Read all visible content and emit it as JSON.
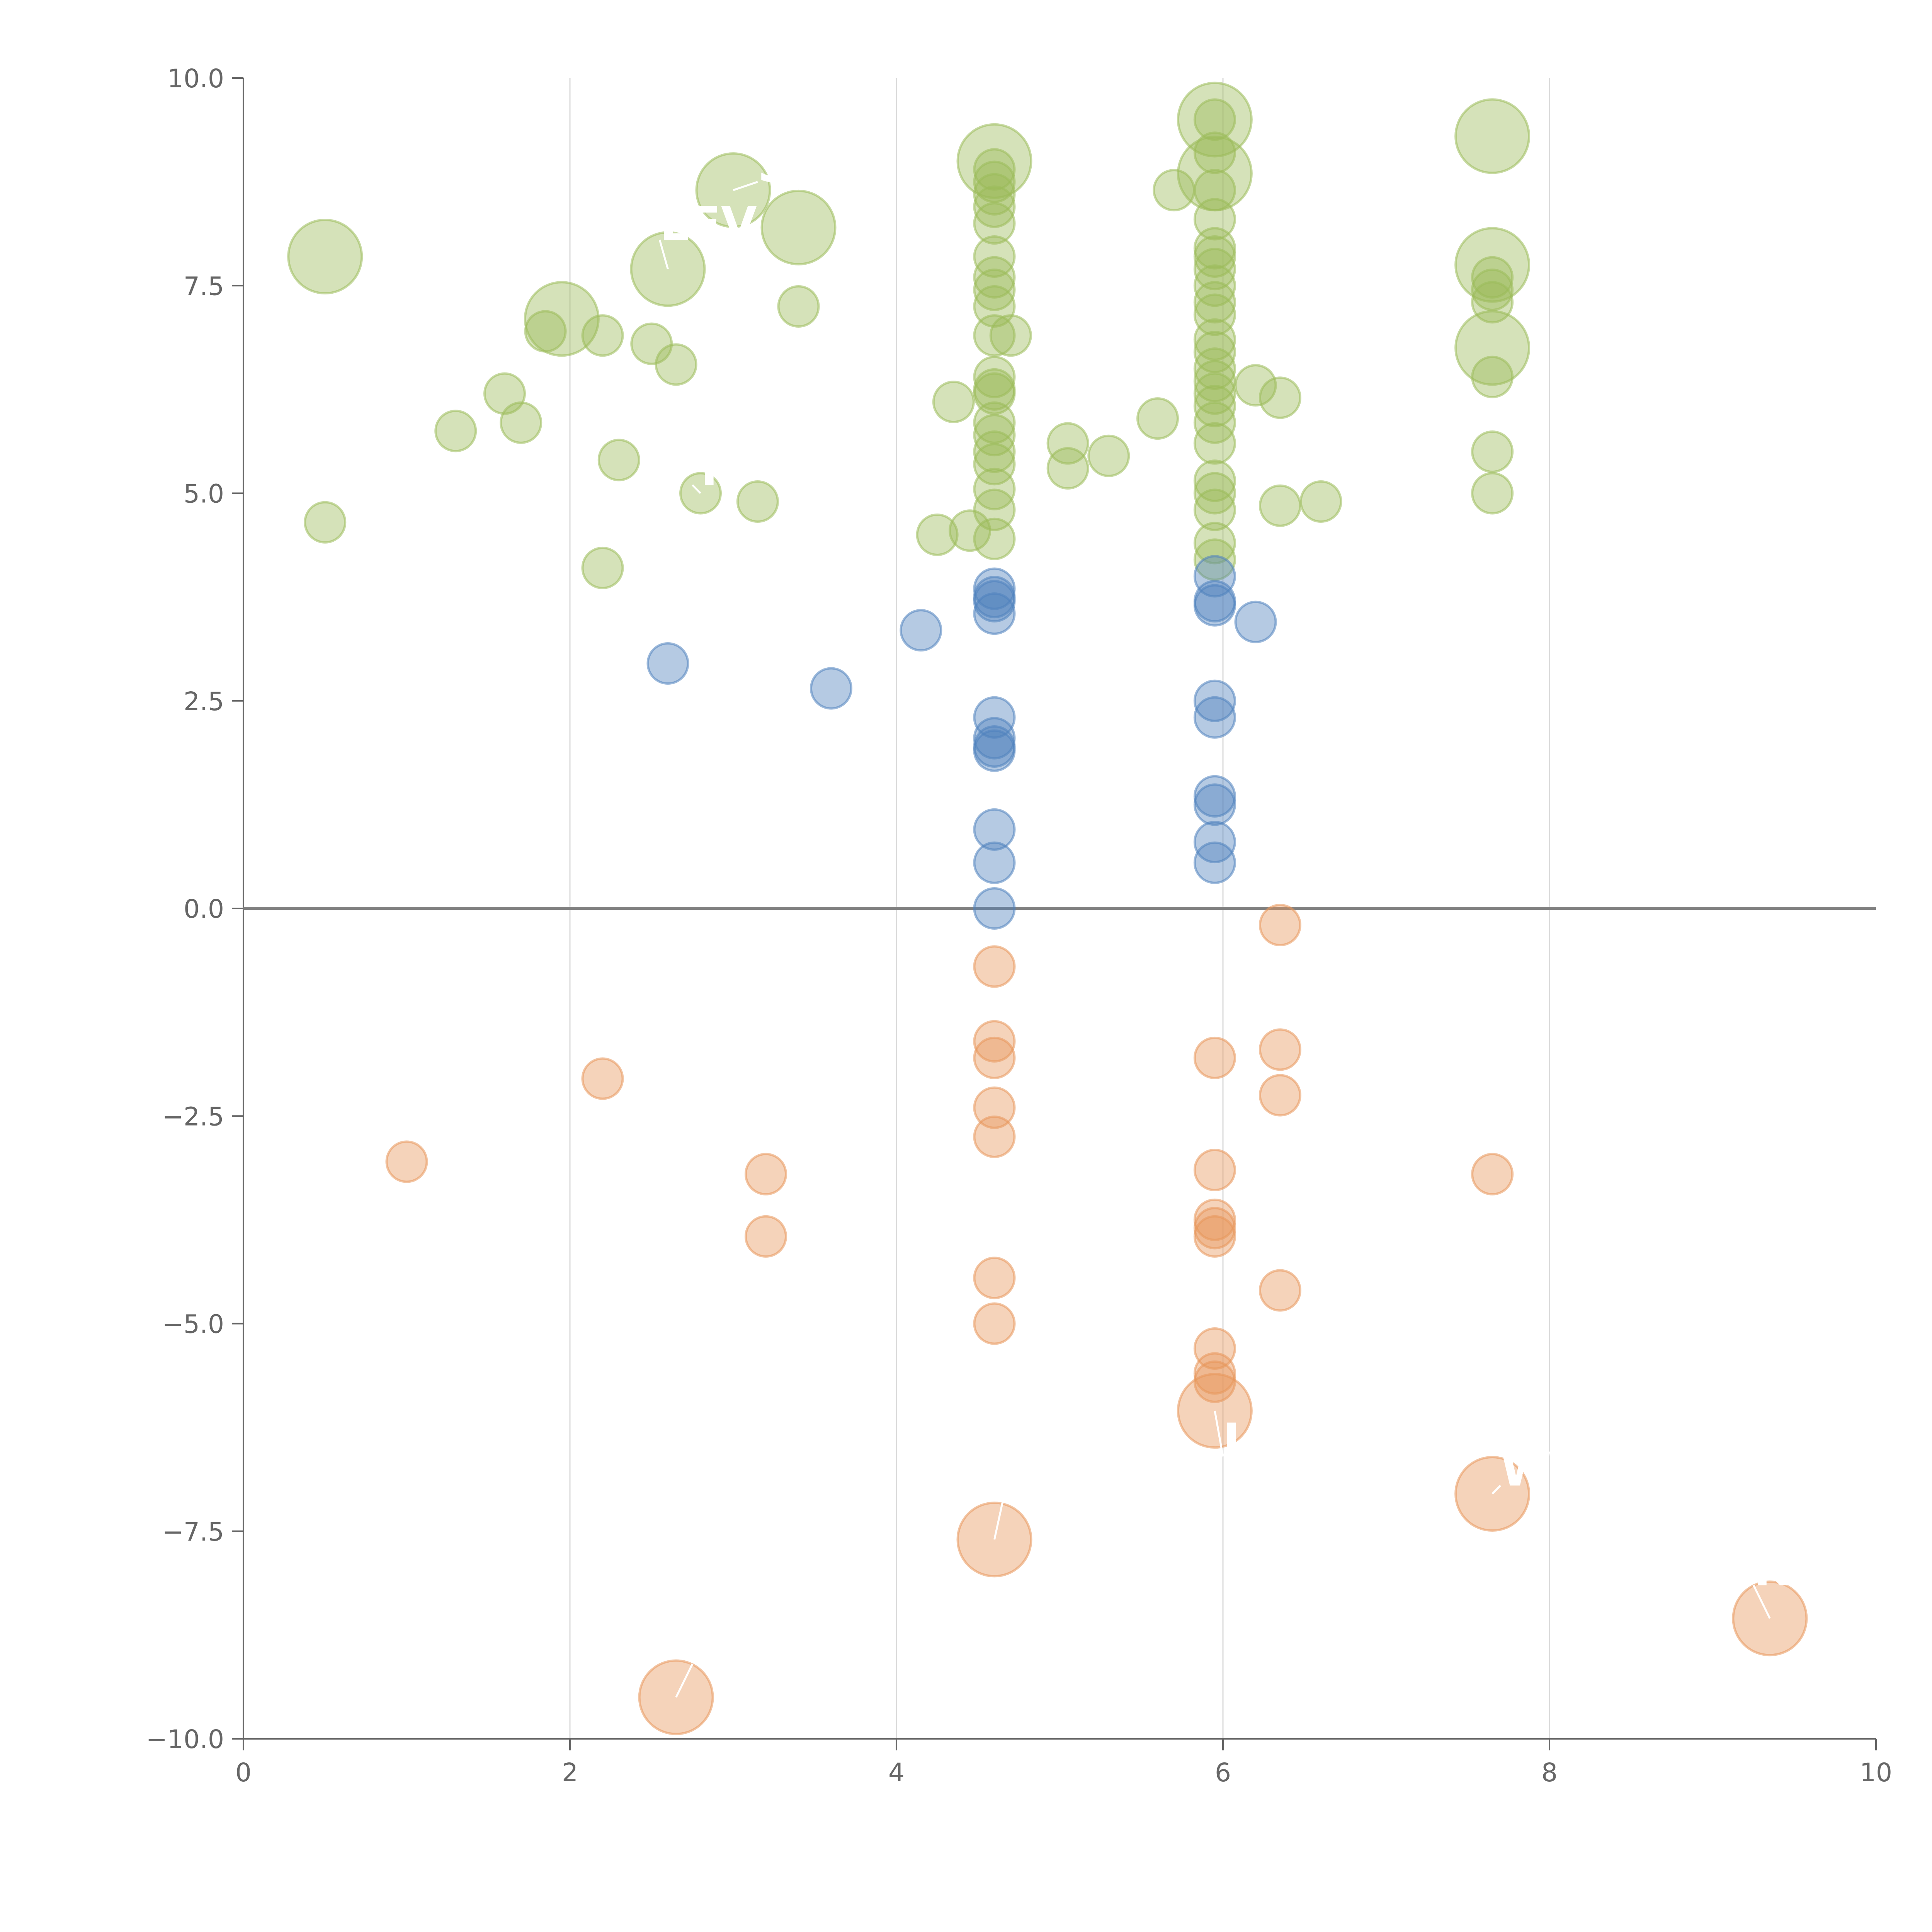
{
  "chart_data": {
    "type": "scatter",
    "title": "",
    "xlabel": "",
    "ylabel": "",
    "xlim": [
      0,
      10
    ],
    "ylim": [
      -10,
      10
    ],
    "x_ticks": [
      "0",
      "2",
      "4",
      "6",
      "8",
      "10"
    ],
    "y_ticks": [
      "−10.0",
      "−7.5",
      "−5.0",
      "−2.5",
      "0.0",
      "2.5",
      "5.0",
      "7.5",
      "10.0"
    ],
    "x_tick_values": [
      0,
      2,
      4,
      6,
      8,
      10
    ],
    "y_tick_values": [
      -10,
      -7.5,
      -5,
      -2.5,
      0,
      2.5,
      5,
      7.5,
      10
    ],
    "colors": {
      "green": "#9bbb59",
      "blue": "#4f81bd",
      "orange": "#e8965a"
    },
    "series": [
      {
        "name": "green",
        "color": "#9bbb59",
        "points": [
          [
            0.5,
            7.85,
            "L"
          ],
          [
            0.5,
            4.65,
            "S"
          ],
          [
            1.3,
            5.75,
            "S"
          ],
          [
            1.6,
            6.2,
            "S"
          ],
          [
            1.7,
            5.85,
            "S"
          ],
          [
            1.85,
            6.95,
            "S"
          ],
          [
            1.95,
            7.1,
            "L"
          ],
          [
            2.2,
            6.9,
            "S"
          ],
          [
            2.2,
            4.1,
            "S"
          ],
          [
            2.3,
            5.4,
            "S"
          ],
          [
            2.5,
            6.8,
            "S"
          ],
          [
            2.6,
            7.7,
            "L"
          ],
          [
            2.65,
            6.55,
            "S"
          ],
          [
            2.8,
            5.0,
            "S"
          ],
          [
            3.0,
            8.65,
            "L"
          ],
          [
            3.15,
            4.9,
            "S"
          ],
          [
            3.4,
            8.2,
            "L"
          ],
          [
            3.4,
            7.25,
            "S"
          ],
          [
            4.25,
            4.5,
            "S"
          ],
          [
            4.35,
            6.1,
            "S"
          ],
          [
            4.45,
            4.55,
            "S"
          ],
          [
            4.6,
            9.0,
            "L"
          ],
          [
            4.6,
            8.9,
            "S"
          ],
          [
            4.6,
            8.75,
            "S"
          ],
          [
            4.6,
            8.6,
            "S"
          ],
          [
            4.6,
            8.45,
            "S"
          ],
          [
            4.6,
            8.25,
            "S"
          ],
          [
            4.6,
            7.85,
            "S"
          ],
          [
            4.6,
            7.6,
            "S"
          ],
          [
            4.6,
            7.45,
            "S"
          ],
          [
            4.6,
            7.25,
            "S"
          ],
          [
            4.6,
            6.9,
            "S"
          ],
          [
            4.6,
            6.4,
            "S"
          ],
          [
            4.6,
            6.25,
            "S"
          ],
          [
            4.6,
            6.2,
            "S"
          ],
          [
            4.6,
            5.85,
            "S"
          ],
          [
            4.6,
            5.7,
            "S"
          ],
          [
            4.6,
            5.5,
            "S"
          ],
          [
            4.6,
            5.35,
            "S"
          ],
          [
            4.6,
            5.05,
            "S"
          ],
          [
            4.6,
            4.8,
            "S"
          ],
          [
            4.6,
            4.45,
            "S"
          ],
          [
            4.7,
            6.9,
            "S"
          ],
          [
            5.05,
            5.6,
            "S"
          ],
          [
            5.05,
            5.3,
            "S"
          ],
          [
            5.3,
            5.45,
            "S"
          ],
          [
            5.6,
            5.9,
            "S"
          ],
          [
            5.7,
            8.65,
            "S"
          ],
          [
            5.95,
            9.5,
            "L"
          ],
          [
            5.95,
            9.5,
            "S"
          ],
          [
            5.95,
            9.1,
            "S"
          ],
          [
            5.95,
            8.85,
            "L"
          ],
          [
            5.95,
            8.65,
            "S"
          ],
          [
            5.95,
            8.3,
            "S"
          ],
          [
            5.95,
            7.95,
            "S"
          ],
          [
            5.95,
            7.85,
            "S"
          ],
          [
            5.95,
            7.7,
            "S"
          ],
          [
            5.95,
            7.5,
            "S"
          ],
          [
            5.95,
            7.3,
            "S"
          ],
          [
            5.95,
            7.15,
            "S"
          ],
          [
            5.95,
            6.85,
            "S"
          ],
          [
            5.95,
            6.7,
            "S"
          ],
          [
            5.95,
            6.5,
            "S"
          ],
          [
            5.95,
            6.35,
            "S"
          ],
          [
            5.95,
            6.2,
            "S"
          ],
          [
            5.95,
            6.05,
            "S"
          ],
          [
            5.95,
            5.85,
            "S"
          ],
          [
            5.95,
            5.6,
            "S"
          ],
          [
            5.95,
            5.15,
            "S"
          ],
          [
            5.95,
            5.0,
            "S"
          ],
          [
            5.95,
            4.8,
            "S"
          ],
          [
            5.95,
            4.4,
            "S"
          ],
          [
            5.95,
            4.2,
            "S"
          ],
          [
            6.2,
            6.3,
            "S"
          ],
          [
            6.35,
            6.15,
            "S"
          ],
          [
            6.35,
            4.85,
            "S"
          ],
          [
            6.6,
            4.9,
            "S"
          ],
          [
            7.65,
            9.3,
            "L"
          ],
          [
            7.65,
            7.75,
            "L"
          ],
          [
            7.65,
            7.6,
            "S"
          ],
          [
            7.65,
            7.45,
            "S"
          ],
          [
            7.65,
            7.3,
            "S"
          ],
          [
            7.65,
            6.75,
            "L"
          ],
          [
            7.65,
            6.4,
            "S"
          ],
          [
            7.65,
            5.5,
            "S"
          ],
          [
            7.65,
            5.0,
            "S"
          ]
        ]
      },
      {
        "name": "blue",
        "color": "#4f81bd",
        "points": [
          [
            2.6,
            2.95,
            "S"
          ],
          [
            3.6,
            2.65,
            "S"
          ],
          [
            4.15,
            3.35,
            "S"
          ],
          [
            4.6,
            3.85,
            "S"
          ],
          [
            4.6,
            3.75,
            "S"
          ],
          [
            4.6,
            3.7,
            "S"
          ],
          [
            4.6,
            3.55,
            "S"
          ],
          [
            4.6,
            2.3,
            "S"
          ],
          [
            4.6,
            2.05,
            "S"
          ],
          [
            4.6,
            1.95,
            "S"
          ],
          [
            4.6,
            1.9,
            "S"
          ],
          [
            4.6,
            0.95,
            "S"
          ],
          [
            4.6,
            0.55,
            "S"
          ],
          [
            4.6,
            0.0,
            "S"
          ],
          [
            5.95,
            4.0,
            "S"
          ],
          [
            5.95,
            3.7,
            "S"
          ],
          [
            5.95,
            3.65,
            "S"
          ],
          [
            5.95,
            2.5,
            "S"
          ],
          [
            5.95,
            2.3,
            "S"
          ],
          [
            5.95,
            1.35,
            "S"
          ],
          [
            5.95,
            1.25,
            "S"
          ],
          [
            5.95,
            0.8,
            "S"
          ],
          [
            5.95,
            0.55,
            "S"
          ],
          [
            6.2,
            3.45,
            "S"
          ]
        ]
      },
      {
        "name": "orange",
        "color": "#e8965a",
        "points": [
          [
            1.0,
            -3.05,
            "S"
          ],
          [
            2.2,
            -2.05,
            "S"
          ],
          [
            2.65,
            -9.5,
            "L"
          ],
          [
            3.2,
            -3.2,
            "S"
          ],
          [
            3.2,
            -3.95,
            "S"
          ],
          [
            4.6,
            -0.7,
            "S"
          ],
          [
            4.6,
            -1.6,
            "S"
          ],
          [
            4.6,
            -1.8,
            "S"
          ],
          [
            4.6,
            -2.4,
            "S"
          ],
          [
            4.6,
            -2.75,
            "S"
          ],
          [
            4.6,
            -4.45,
            "S"
          ],
          [
            4.6,
            -5.0,
            "S"
          ],
          [
            4.6,
            -7.6,
            "L"
          ],
          [
            5.95,
            -1.8,
            "S"
          ],
          [
            5.95,
            -3.15,
            "S"
          ],
          [
            5.95,
            -3.75,
            "S"
          ],
          [
            5.95,
            -3.85,
            "S"
          ],
          [
            5.95,
            -3.95,
            "S"
          ],
          [
            5.95,
            -5.3,
            "S"
          ],
          [
            5.95,
            -5.6,
            "S"
          ],
          [
            5.95,
            -5.7,
            "S"
          ],
          [
            5.95,
            -6.05,
            "L"
          ],
          [
            6.35,
            -0.2,
            "S"
          ],
          [
            6.35,
            -1.7,
            "S"
          ],
          [
            6.35,
            -2.25,
            "S"
          ],
          [
            6.35,
            -4.6,
            "S"
          ],
          [
            7.65,
            -3.2,
            "S"
          ],
          [
            7.65,
            -7.05,
            "L"
          ],
          [
            9.35,
            -8.55,
            "L"
          ]
        ]
      }
    ],
    "annotations": [
      {
        "text": "SC",
        "x": 3.0,
        "y": 8.65,
        "tx": 3.15,
        "ty": 8.75
      },
      {
        "text": "LEV",
        "x": 2.6,
        "y": 7.7,
        "tx": 2.55,
        "ty": 8.05
      },
      {
        "text": "Y",
        "x": 2.8,
        "y": 5.0,
        "tx": 2.75,
        "ty": 5.1
      },
      {
        "text": "I",
        "x": 5.95,
        "y": -6.05,
        "tx": 6.0,
        "ty": -6.6
      },
      {
        "text": "WC",
        "x": 7.65,
        "y": -7.05,
        "tx": 7.7,
        "ty": -6.95
      },
      {
        "text": "T",
        "x": 4.6,
        "y": -7.6,
        "tx": 4.65,
        "ty": -7.15
      },
      {
        "text": "N",
        "x": 2.65,
        "y": -9.5,
        "tx": 2.75,
        "ty": -9.1
      },
      {
        "text": "K",
        "x": 9.35,
        "y": -8.55,
        "tx": 9.25,
        "ty": -8.15
      }
    ]
  }
}
